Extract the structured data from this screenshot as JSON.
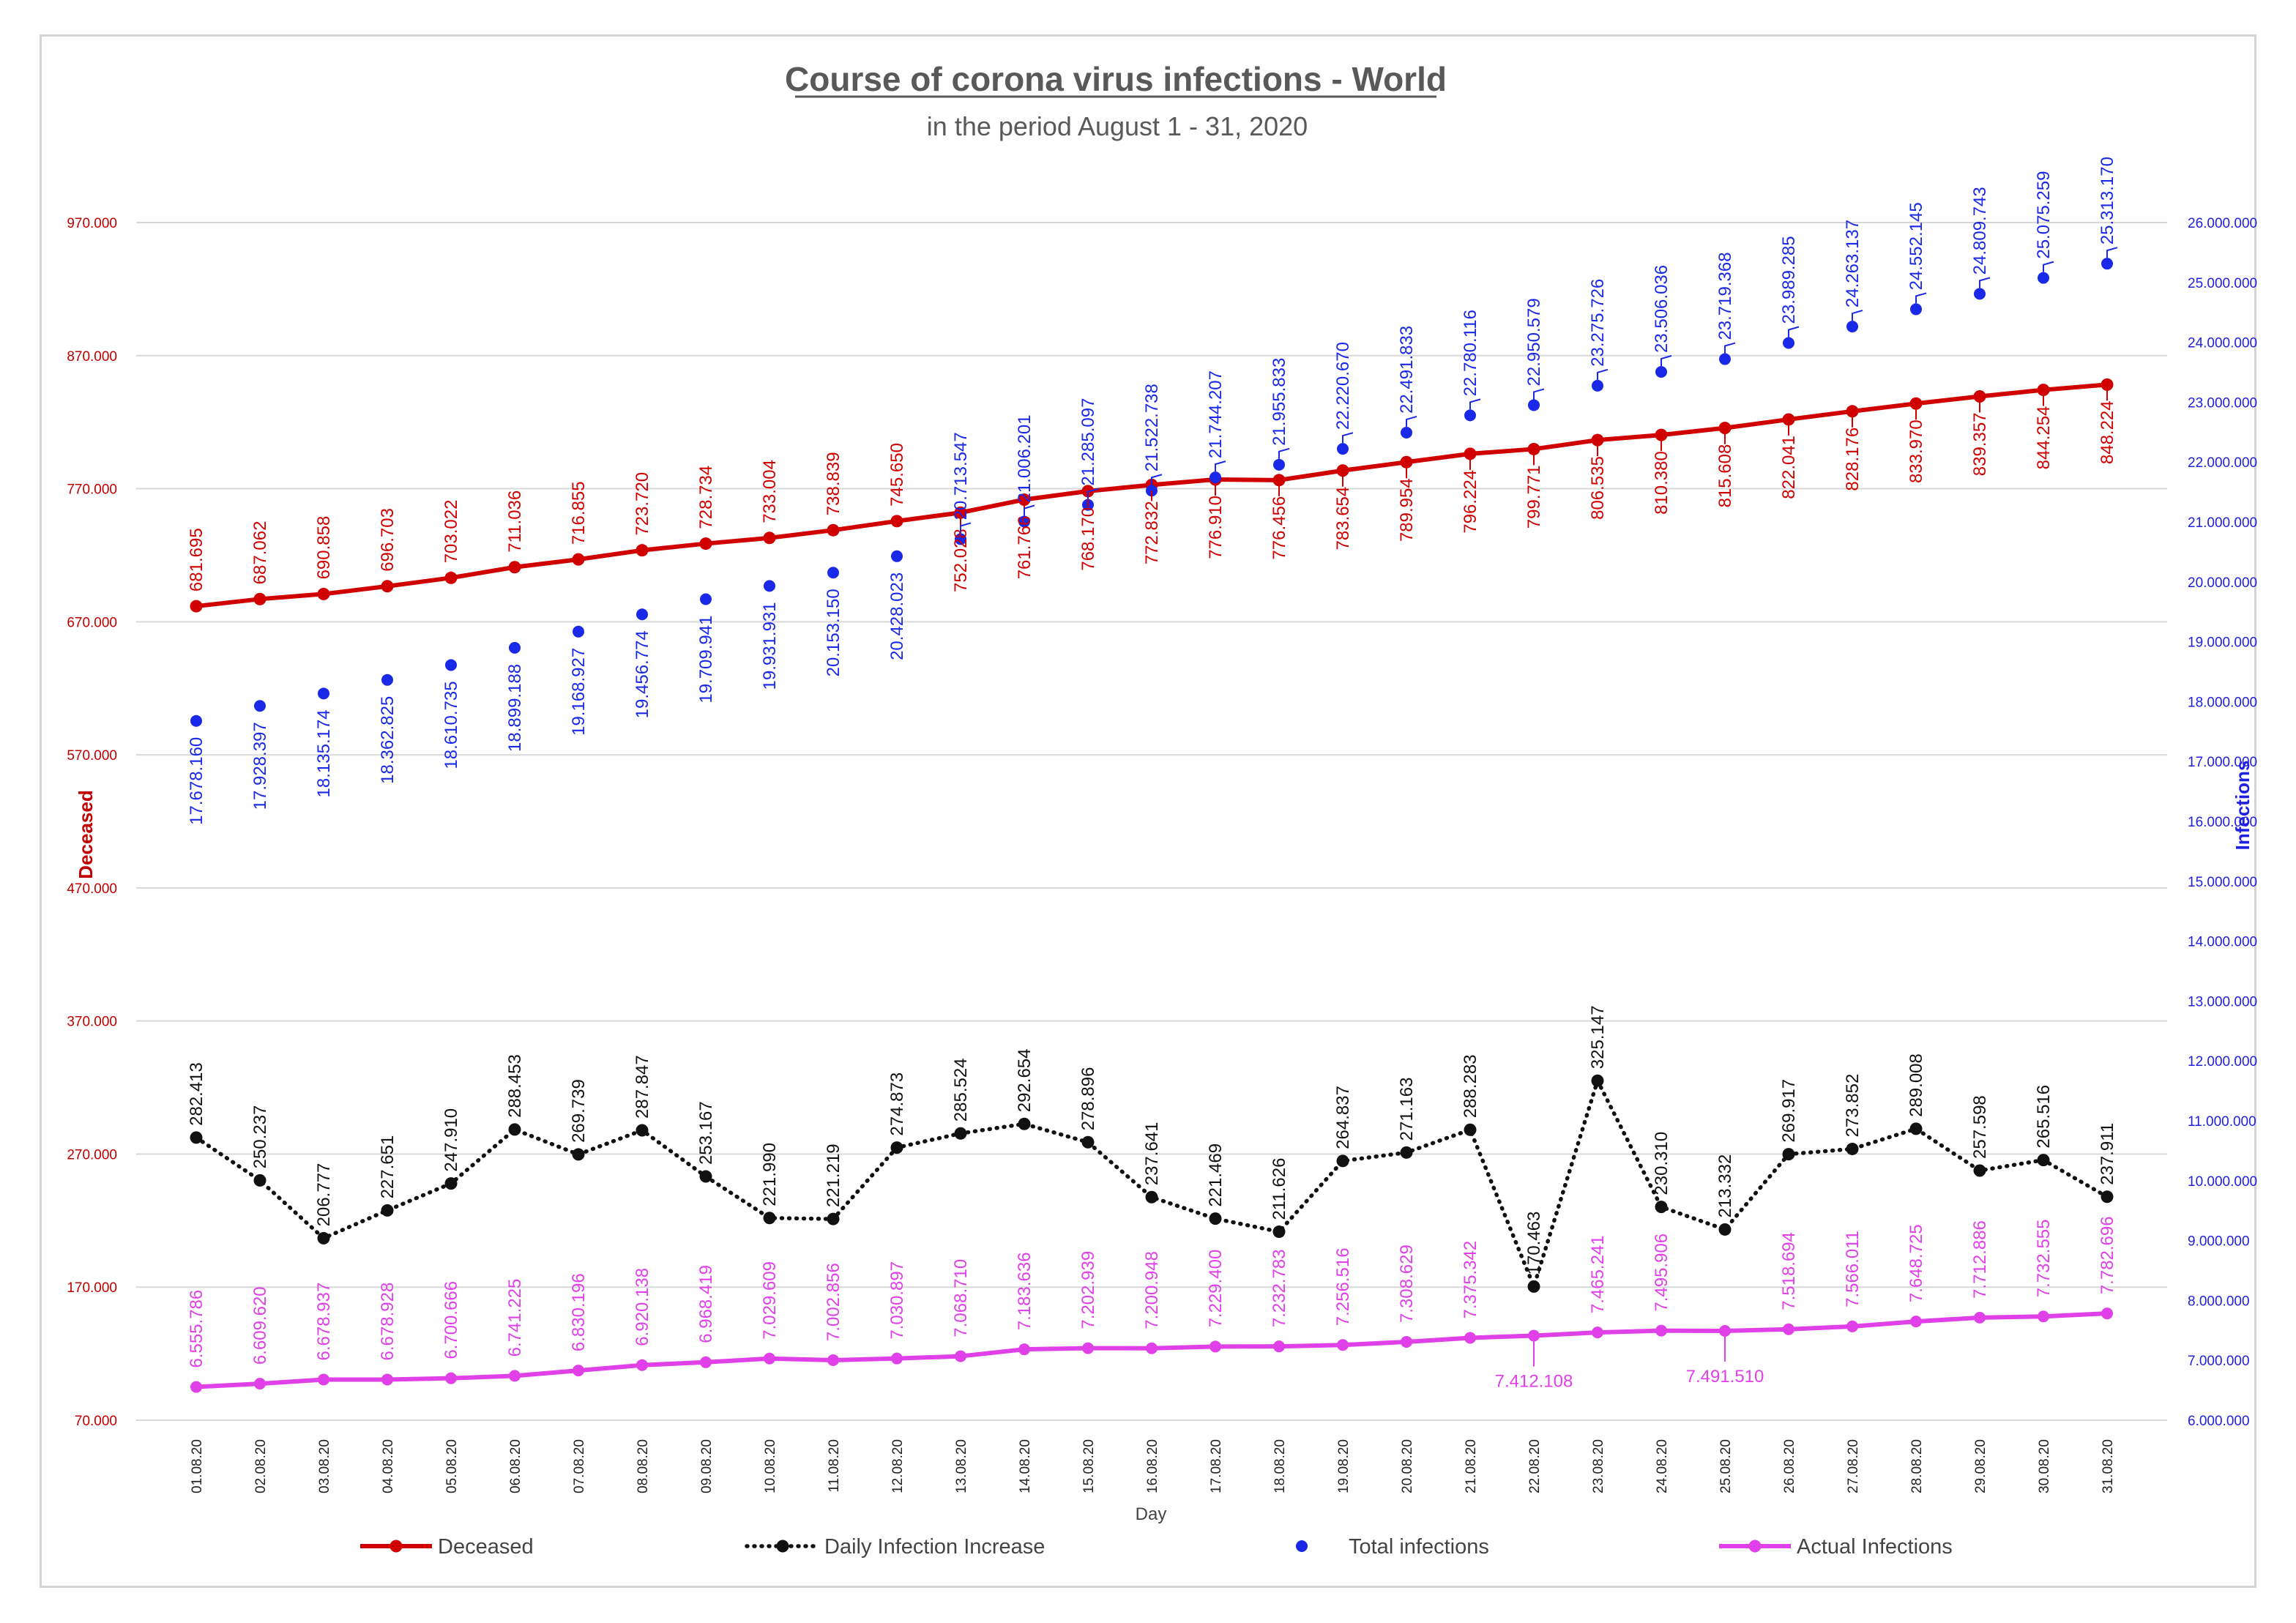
{
  "chart_data": {
    "type": "line",
    "title": "Course of corona virus infections - World",
    "subtitle": "in the period August 1 - 31, 2020",
    "xlabel": "Day",
    "ylabel_left": "Deceased",
    "ylabel_right": "Infections",
    "ylim_left": [
      70000,
      970000
    ],
    "ylim_right": [
      6000000,
      26000000
    ],
    "left_ticks": [
      "70.000",
      "170.000",
      "270.000",
      "370.000",
      "470.000",
      "570.000",
      "670.000",
      "770.000",
      "870.000",
      "970.000"
    ],
    "right_ticks": [
      "6.000.000",
      "7.000.000",
      "8.000.000",
      "9.000.000",
      "10.000.000",
      "11.000.000",
      "12.000.000",
      "13.000.000",
      "14.000.000",
      "15.000.000",
      "16.000.000",
      "17.000.000",
      "18.000.000",
      "19.000.000",
      "20.000.000",
      "21.000.000",
      "22.000.000",
      "23.000.000",
      "24.000.000",
      "25.000.000",
      "26.000.000"
    ],
    "grid": true,
    "legend_position": "bottom",
    "categories": [
      "01.08.20",
      "02.08.20",
      "03.08.20",
      "04.08.20",
      "05.08.20",
      "06.08.20",
      "07.08.20",
      "08.08.20",
      "09.08.20",
      "10.08.20",
      "11.08.20",
      "12.08.20",
      "13.08.20",
      "14.08.20",
      "15.08.20",
      "16.08.20",
      "17.08.20",
      "18.08.20",
      "19.08.20",
      "20.08.20",
      "21.08.20",
      "22.08.20",
      "23.08.20",
      "24.08.20",
      "25.08.20",
      "26.08.20",
      "27.08.20",
      "28.08.20",
      "29.08.20",
      "30.08.20",
      "31.08.20"
    ],
    "series": [
      {
        "name": "Deceased",
        "axis": "left",
        "style": "solid-line-markers",
        "color": "#d00000",
        "values": [
          681695,
          687062,
          690858,
          696703,
          703022,
          711036,
          716855,
          723720,
          728734,
          733004,
          738839,
          745650,
          752028,
          761766,
          768170,
          772832,
          776910,
          776456,
          783654,
          789954,
          796224,
          799771,
          806535,
          810380,
          815608,
          822041,
          828176,
          833970,
          839357,
          844254,
          848224
        ],
        "labels": [
          "681.695",
          "687.062",
          "690.858",
          "696.703",
          "703.022",
          "711.036",
          "716.855",
          "723.720",
          "728.734",
          "733.004",
          "738.839",
          "745.650",
          "752.028",
          "761.766",
          "768.170",
          "772.832",
          "776.910",
          "776.456",
          "783.654",
          "789.954",
          "796.224",
          "799.771",
          "806.535",
          "810.380",
          "815.608",
          "822.041",
          "828.176",
          "833.970",
          "839.357",
          "844.254",
          "848.224"
        ]
      },
      {
        "name": "Daily Infection Increase",
        "axis": "left",
        "style": "dotted-line-markers",
        "color": "#111111",
        "values": [
          282413,
          250237,
          206777,
          227651,
          247910,
          288453,
          269739,
          287847,
          253167,
          221990,
          221219,
          274873,
          285524,
          292654,
          278896,
          237641,
          221469,
          211626,
          264837,
          271163,
          288283,
          170463,
          325147,
          230310,
          213332,
          269917,
          273852,
          289008,
          257598,
          265516,
          237911
        ],
        "labels": [
          "282.413",
          "250.237",
          "206.777",
          "227.651",
          "247.910",
          "288.453",
          "269.739",
          "287.847",
          "253.167",
          "221.990",
          "221.219",
          "274.873",
          "285.524",
          "292.654",
          "278.896",
          "237.641",
          "221.469",
          "211.626",
          "264.837",
          "271.163",
          "288.283",
          "170.463",
          "325.147",
          "230.310",
          "213.332",
          "269.917",
          "273.852",
          "289.008",
          "257.598",
          "265.516",
          "237.911"
        ]
      },
      {
        "name": "Total infections",
        "axis": "right",
        "style": "markers",
        "color": "#1a28e8",
        "values": [
          17678160,
          17928397,
          18135174,
          18362825,
          18610735,
          18899188,
          19168927,
          19456774,
          19709941,
          19931931,
          20153150,
          20428023,
          20713547,
          21006201,
          21285097,
          21522738,
          21744207,
          21955833,
          22220670,
          22491833,
          22780116,
          22950579,
          23275726,
          23506036,
          23719368,
          23989285,
          24263137,
          24552145,
          24809743,
          25075259,
          25313170
        ],
        "labels": [
          "17.678.160",
          "17.928.397",
          "18.135.174",
          "18.362.825",
          "18.610.735",
          "18.899.188",
          "19.168.927",
          "19.456.774",
          "19.709.941",
          "19.931.931",
          "20.153.150",
          "20.428.023",
          "20.713.547",
          "21.006.201",
          "21.285.097",
          "21.522.738",
          "21.744.207",
          "21.955.833",
          "22.220.670",
          "22.491.833",
          "22.780.116",
          "22.950.579",
          "23.275.726",
          "23.506.036",
          "23.719.368",
          "23.989.285",
          "24.263.137",
          "24.552.145",
          "24.809.743",
          "25.075.259",
          "25.313.170"
        ]
      },
      {
        "name": "Actual Infections",
        "axis": "right",
        "style": "solid-line-markers",
        "color": "#e040e8",
        "values": [
          6555786,
          6609620,
          6678937,
          6678928,
          6700666,
          6741225,
          6830196,
          6920138,
          6968419,
          7029609,
          7002856,
          7030897,
          7068710,
          7183636,
          7202939,
          7200948,
          7229400,
          7232783,
          7256516,
          7308629,
          7375342,
          7412108,
          7465241,
          7495906,
          7491510,
          7518694,
          7566011,
          7648725,
          7712886,
          7732555,
          7782696
        ],
        "labels": [
          "6.555.786",
          "6.609.620",
          "6.678.937",
          "6.678.928",
          "6.700.666",
          "6.741.225",
          "6.830.196",
          "6.920.138",
          "6.968.419",
          "7.029.609",
          "7.002.856",
          "7.030.897",
          "7.068.710",
          "7.183.636",
          "7.202.939",
          "7.200.948",
          "7.229.400",
          "7.232.783",
          "7.256.516",
          "7.308.629",
          "7.375.342",
          "7.412.108",
          "7.465.241",
          "7.495.906",
          "7.491.510",
          "7.518.694",
          "7.566.011",
          "7.648.725",
          "7.712.886",
          "7.732.555",
          "7.782.696"
        ]
      }
    ]
  },
  "colors": {
    "left_axis": "#c00000",
    "right_axis": "#2020e0",
    "grid": "#d9d9d9"
  }
}
